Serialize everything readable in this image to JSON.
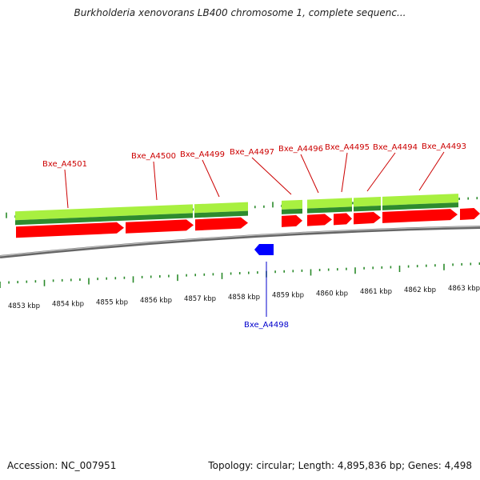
{
  "title": "Burkholderia xenovorans LB400 chromosome 1, complete sequenc...",
  "footer": {
    "accession": "Accession: NC_007951",
    "summary": "Topology: circular; Length: 4,895,836 bp; Genes: 4,498"
  },
  "colors": {
    "forward_gene": "#ff0000",
    "reverse_gene": "#0000ff",
    "forward_label": "#cc0000",
    "reverse_label": "#0000cc",
    "tick": "#2a8a2a",
    "feature_light": "#a8f040",
    "feature_dark": "#2e8b2e",
    "backbone": "#888888"
  },
  "diagram": {
    "kbp_labels": [
      "4853 kbp",
      "4854 kbp",
      "4855 kbp",
      "4856 kbp",
      "4857 kbp",
      "4858 kbp",
      "4859 kbp",
      "4860 kbp",
      "4861 kbp",
      "4862 kbp",
      "4863 kbp"
    ],
    "forward_genes": [
      "Bxe_A4501",
      "Bxe_A4500",
      "Bxe_A4499",
      "Bxe_A4497",
      "Bxe_A4496",
      "Bxe_A4495",
      "Bxe_A4494",
      "Bxe_A4493"
    ],
    "reverse_genes": [
      "Bxe_A4498"
    ]
  }
}
